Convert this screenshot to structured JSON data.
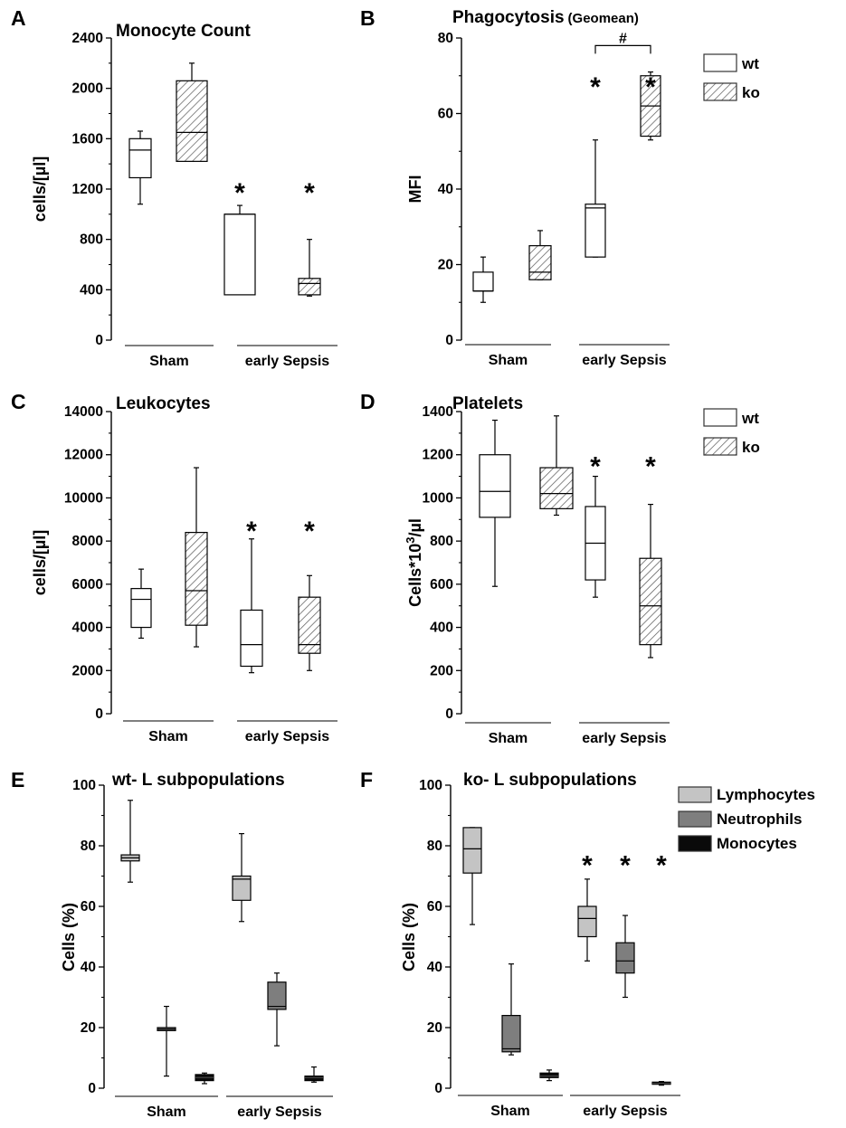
{
  "chart_data": [
    {
      "type": "box",
      "panel_label": "A",
      "title": "Monocyte Count",
      "ylabel": "cells/[µl]",
      "ylim": [
        0,
        2400
      ],
      "yticks": [
        "0",
        "400",
        "800",
        "1200",
        "1600",
        "2000",
        "2400"
      ],
      "groups": [
        {
          "label": "Sham"
        },
        {
          "label": "early Sepsis"
        }
      ],
      "boxes": [
        {
          "group": 0,
          "series": "wt",
          "whisker_low": 1080,
          "q1": 1290,
          "median": 1510,
          "q3": 1600,
          "whisker_high": 1660
        },
        {
          "group": 0,
          "series": "ko",
          "whisker_low": 1420,
          "q1": 1420,
          "median": 1650,
          "q3": 2060,
          "whisker_high": 2200
        },
        {
          "group": 1,
          "series": "wt",
          "whisker_low": 360,
          "q1": 360,
          "median": 1000,
          "q3": 1000,
          "whisker_high": 1070
        },
        {
          "group": 1,
          "series": "ko",
          "whisker_low": 350,
          "q1": 360,
          "median": 450,
          "q3": 490,
          "whisker_high": 800
        }
      ],
      "annotations": [
        {
          "text": "*",
          "box": 2,
          "value": 1230
        },
        {
          "text": "*",
          "box": 3,
          "value": 1230
        }
      ]
    },
    {
      "type": "box",
      "panel_label": "B",
      "title": "Phagocytosis",
      "title_note": "(Geomean)",
      "ylabel": "MFI",
      "ylim": [
        0,
        80
      ],
      "yticks": [
        "0",
        "20",
        "40",
        "60",
        "80"
      ],
      "groups": [
        {
          "label": "Sham"
        },
        {
          "label": "early Sepsis"
        }
      ],
      "boxes": [
        {
          "group": 0,
          "series": "wt",
          "whisker_low": 10,
          "q1": 13,
          "median": 13,
          "q3": 18,
          "whisker_high": 22
        },
        {
          "group": 0,
          "series": "ko",
          "whisker_low": 16,
          "q1": 16,
          "median": 18,
          "q3": 25,
          "whisker_high": 29
        },
        {
          "group": 1,
          "series": "wt",
          "whisker_low": 22,
          "q1": 22,
          "median": 35,
          "q3": 36,
          "whisker_high": 53
        },
        {
          "group": 1,
          "series": "ko",
          "whisker_low": 53,
          "q1": 54,
          "median": 62,
          "q3": 70,
          "whisker_high": 71
        }
      ],
      "annotations": [
        {
          "text": "*",
          "box": 2,
          "value": 69
        },
        {
          "text": "*",
          "box": 3,
          "value": 69
        }
      ],
      "bracket": {
        "text": "#",
        "from_box": 2,
        "to_box": 3,
        "value": 78
      },
      "legend": [
        {
          "label": "wt",
          "pattern": "open"
        },
        {
          "label": "ko",
          "pattern": "hatched"
        }
      ]
    },
    {
      "type": "box",
      "panel_label": "C",
      "title": "Leukocytes",
      "ylabel": "cells/[µl]",
      "ylim": [
        0,
        14000
      ],
      "yticks": [
        "0",
        "2000",
        "4000",
        "6000",
        "8000",
        "10000",
        "12000",
        "14000"
      ],
      "groups": [
        {
          "label": "Sham"
        },
        {
          "label": "early Sepsis"
        }
      ],
      "boxes": [
        {
          "group": 0,
          "series": "wt",
          "whisker_low": 3500,
          "q1": 4000,
          "median": 5300,
          "q3": 5800,
          "whisker_high": 6700
        },
        {
          "group": 0,
          "series": "ko",
          "whisker_low": 3100,
          "q1": 4100,
          "median": 5700,
          "q3": 8400,
          "whisker_high": 11400
        },
        {
          "group": 1,
          "series": "wt",
          "whisker_low": 1900,
          "q1": 2200,
          "median": 3200,
          "q3": 4800,
          "whisker_high": 8100
        },
        {
          "group": 1,
          "series": "ko",
          "whisker_low": 2000,
          "q1": 2800,
          "median": 3200,
          "q3": 5400,
          "whisker_high": 6400
        }
      ],
      "annotations": [
        {
          "text": "*",
          "box": 2,
          "value": 8800
        },
        {
          "text": "*",
          "box": 3,
          "value": 8800
        }
      ]
    },
    {
      "type": "box",
      "panel_label": "D",
      "title": "Platelets",
      "ylabel_main": "Cells*10",
      "ylabel_sup": "3",
      "ylabel_tail": "/µl",
      "ylim": [
        0,
        1400
      ],
      "yticks": [
        "0",
        "200",
        "400",
        "600",
        "800",
        "1000",
        "1200",
        "1400"
      ],
      "groups": [
        {
          "label": "Sham"
        },
        {
          "label": "early Sepsis"
        }
      ],
      "boxes": [
        {
          "group": 0,
          "series": "wt",
          "whisker_low": 590,
          "q1": 910,
          "median": 1030,
          "q3": 1200,
          "whisker_high": 1360
        },
        {
          "group": 0,
          "series": "ko",
          "whisker_low": 920,
          "q1": 950,
          "median": 1020,
          "q3": 1140,
          "whisker_high": 1380
        },
        {
          "group": 1,
          "series": "wt",
          "whisker_low": 540,
          "q1": 620,
          "median": 790,
          "q3": 960,
          "whisker_high": 1100
        },
        {
          "group": 1,
          "series": "ko",
          "whisker_low": 260,
          "q1": 320,
          "median": 500,
          "q3": 720,
          "whisker_high": 970
        }
      ],
      "annotations": [
        {
          "text": "*",
          "box": 2,
          "value": 1180
        },
        {
          "text": "*",
          "box": 3,
          "value": 1180
        }
      ],
      "legend": [
        {
          "label": "wt",
          "pattern": "open"
        },
        {
          "label": "ko",
          "pattern": "hatched"
        }
      ]
    },
    {
      "type": "box",
      "panel_label": "E",
      "title": "wt- L subpopulations",
      "ylabel": "Cells (%)",
      "ylim": [
        0,
        100
      ],
      "yticks": [
        "0",
        "20",
        "40",
        "60",
        "80",
        "100"
      ],
      "groups": [
        {
          "label": "Sham"
        },
        {
          "label": "early Sepsis"
        }
      ],
      "boxes": [
        {
          "group": 0,
          "series": "Lymphocytes",
          "whisker_low": 68,
          "q1": 75,
          "median": 76,
          "q3": 77,
          "whisker_high": 95
        },
        {
          "group": 0,
          "series": "Neutrophils",
          "whisker_low": 4,
          "q1": 19,
          "median": 19.5,
          "q3": 20,
          "whisker_high": 27
        },
        {
          "group": 0,
          "series": "Monocytes",
          "whisker_low": 1.5,
          "q1": 2.5,
          "median": 3.5,
          "q3": 4.5,
          "whisker_high": 5
        },
        {
          "group": 1,
          "series": "Lymphocytes",
          "whisker_low": 55,
          "q1": 62,
          "median": 69,
          "q3": 70,
          "whisker_high": 84
        },
        {
          "group": 1,
          "series": "Neutrophils",
          "whisker_low": 14,
          "q1": 26,
          "median": 27,
          "q3": 35,
          "whisker_high": 38
        },
        {
          "group": 1,
          "series": "Monocytes",
          "whisker_low": 2,
          "q1": 2.5,
          "median": 3.5,
          "q3": 4,
          "whisker_high": 7
        }
      ],
      "annotations": []
    },
    {
      "type": "box",
      "panel_label": "F",
      "title": "ko- L subpopulations",
      "ylabel": "Cells (%)",
      "ylim": [
        0,
        100
      ],
      "yticks": [
        "0",
        "20",
        "40",
        "60",
        "80",
        "100"
      ],
      "groups": [
        {
          "label": "Sham"
        },
        {
          "label": "early Sepsis"
        }
      ],
      "boxes": [
        {
          "group": 0,
          "series": "Lymphocytes",
          "whisker_low": 54,
          "q1": 71,
          "median": 79,
          "q3": 86,
          "whisker_high": 86
        },
        {
          "group": 0,
          "series": "Neutrophils",
          "whisker_low": 11,
          "q1": 12,
          "median": 13,
          "q3": 24,
          "whisker_high": 41
        },
        {
          "group": 0,
          "series": "Monocytes",
          "whisker_low": 2.5,
          "q1": 3.5,
          "median": 4,
          "q3": 5,
          "whisker_high": 6
        },
        {
          "group": 1,
          "series": "Lymphocytes",
          "whisker_low": 42,
          "q1": 50,
          "median": 56,
          "q3": 60,
          "whisker_high": 69
        },
        {
          "group": 1,
          "series": "Neutrophils",
          "whisker_low": 30,
          "q1": 38,
          "median": 42,
          "q3": 48,
          "whisker_high": 57
        },
        {
          "group": 1,
          "series": "Monocytes",
          "whisker_low": 1,
          "q1": 1.3,
          "median": 1.6,
          "q3": 2,
          "whisker_high": 2.2
        }
      ],
      "annotations": [
        {
          "text": "*",
          "box": 3,
          "value": 76
        },
        {
          "text": "*",
          "box": 4,
          "value": 76
        },
        {
          "text": "*",
          "box": 5,
          "value": 76
        }
      ],
      "legend": [
        {
          "label": "Lymphocytes",
          "color": "#c4c4c4"
        },
        {
          "label": "Neutrophils",
          "color": "#7e7e7e"
        },
        {
          "label": "Monocytes",
          "color": "#0a0a0a"
        }
      ]
    }
  ]
}
